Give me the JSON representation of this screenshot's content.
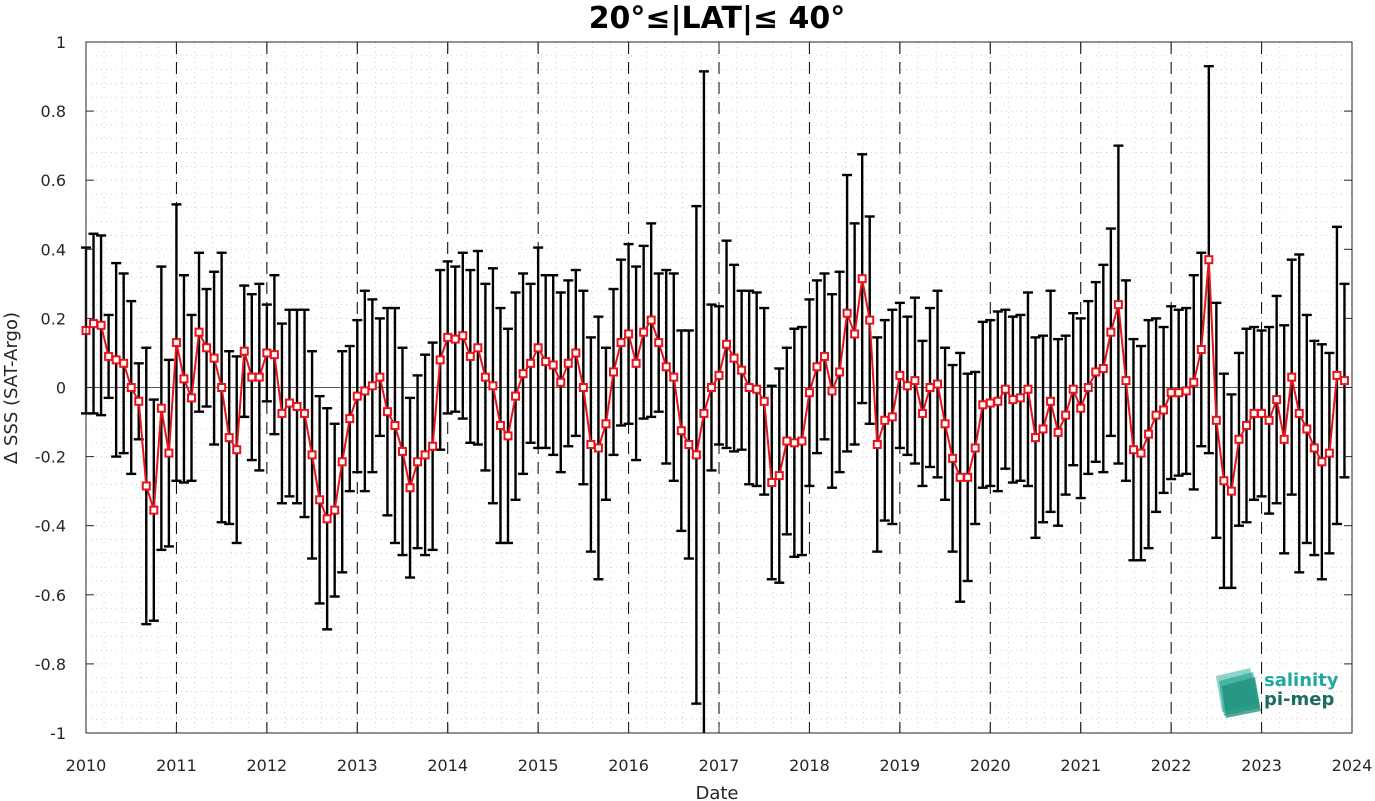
{
  "chart_data": {
    "type": "line",
    "title": "20°≤|LAT|≤ 40°",
    "xlabel": "Date",
    "ylabel": "Δ SSS (SAT-Argo)",
    "xlim": [
      "2010-01",
      "2024-01"
    ],
    "ylim": [
      -1,
      1
    ],
    "xticks": [
      "2010",
      "2011",
      "2012",
      "2013",
      "2014",
      "2015",
      "2016",
      "2017",
      "2018",
      "2019",
      "2020",
      "2021",
      "2022",
      "2023",
      "2024"
    ],
    "yticks": [
      -1,
      -0.8,
      -0.6,
      -0.4,
      -0.2,
      0,
      0.2,
      0.4,
      0.6,
      0.8,
      1
    ],
    "ytick_labels": [
      "-1",
      "-0.8",
      "-0.6",
      "-0.4",
      "-0.2",
      "0",
      "0.2",
      "0.4",
      "0.6",
      "0.8",
      "1"
    ],
    "grid": "minor dotted",
    "year_lines": "dashed vertical at each year",
    "series": [
      {
        "color": "#e8141b",
        "marker": "square",
        "x": [
          "2010-01",
          "2010-02",
          "2010-03",
          "2010-04",
          "2010-05",
          "2010-06",
          "2010-07",
          "2010-08",
          "2010-09",
          "2010-10",
          "2010-11",
          "2010-12",
          "2011-01",
          "2011-02",
          "2011-03",
          "2011-04",
          "2011-05",
          "2011-06",
          "2011-07",
          "2011-08",
          "2011-09",
          "2011-10",
          "2011-11",
          "2011-12",
          "2012-01",
          "2012-02",
          "2012-03",
          "2012-04",
          "2012-05",
          "2012-06",
          "2012-07",
          "2012-08",
          "2012-09",
          "2012-10",
          "2012-11",
          "2012-12",
          "2013-01",
          "2013-02",
          "2013-03",
          "2013-04",
          "2013-05",
          "2013-06",
          "2013-07",
          "2013-08",
          "2013-09",
          "2013-10",
          "2013-11",
          "2013-12",
          "2014-01",
          "2014-02",
          "2014-03",
          "2014-04",
          "2014-05",
          "2014-06",
          "2014-07",
          "2014-08",
          "2014-09",
          "2014-10",
          "2014-11",
          "2014-12",
          "2015-01",
          "2015-02",
          "2015-03",
          "2015-04",
          "2015-05",
          "2015-06",
          "2015-07",
          "2015-08",
          "2015-09",
          "2015-10",
          "2015-11",
          "2015-12",
          "2016-01",
          "2016-02",
          "2016-03",
          "2016-04",
          "2016-05",
          "2016-06",
          "2016-07",
          "2016-08",
          "2016-09",
          "2016-10",
          "2016-11",
          "2016-12",
          "2017-01",
          "2017-02",
          "2017-03",
          "2017-04",
          "2017-05",
          "2017-06",
          "2017-07",
          "2017-08",
          "2017-09",
          "2017-10",
          "2017-11",
          "2017-12",
          "2018-01",
          "2018-02",
          "2018-03",
          "2018-04",
          "2018-05",
          "2018-06",
          "2018-07",
          "2018-08",
          "2018-09",
          "2018-10",
          "2018-11",
          "2018-12",
          "2019-01",
          "2019-02",
          "2019-03",
          "2019-04",
          "2019-05",
          "2019-06",
          "2019-07",
          "2019-08",
          "2019-09",
          "2019-10",
          "2019-11",
          "2019-12",
          "2020-01",
          "2020-02",
          "2020-03",
          "2020-04",
          "2020-05",
          "2020-06",
          "2020-07",
          "2020-08",
          "2020-09",
          "2020-10",
          "2020-11",
          "2020-12",
          "2021-01",
          "2021-02",
          "2021-03",
          "2021-04",
          "2021-05",
          "2021-06",
          "2021-07",
          "2021-08",
          "2021-09",
          "2021-10",
          "2021-11",
          "2021-12",
          "2022-01",
          "2022-02",
          "2022-03",
          "2022-04",
          "2022-05",
          "2022-06",
          "2022-07",
          "2022-08",
          "2022-09",
          "2022-10",
          "2022-11",
          "2022-12",
          "2023-01",
          "2023-02",
          "2023-03",
          "2023-04",
          "2023-05",
          "2023-06",
          "2023-07",
          "2023-08",
          "2023-09",
          "2023-10",
          "2023-11",
          "2023-12"
        ],
        "y": [
          0.165,
          0.185,
          0.18,
          0.09,
          0.08,
          0.07,
          0.0,
          -0.04,
          -0.285,
          -0.355,
          -0.06,
          -0.19,
          0.13,
          0.025,
          -0.03,
          0.16,
          0.115,
          0.085,
          0.0,
          -0.145,
          -0.18,
          0.105,
          0.03,
          0.03,
          0.1,
          0.095,
          -0.075,
          -0.045,
          -0.055,
          -0.075,
          -0.195,
          -0.325,
          -0.38,
          -0.355,
          -0.215,
          -0.09,
          -0.025,
          -0.01,
          0.005,
          0.03,
          -0.07,
          -0.11,
          -0.185,
          -0.29,
          -0.215,
          -0.195,
          -0.17,
          0.08,
          0.145,
          0.14,
          0.15,
          0.09,
          0.115,
          0.03,
          0.005,
          -0.11,
          -0.14,
          -0.025,
          0.04,
          0.07,
          0.115,
          0.075,
          0.065,
          0.015,
          0.07,
          0.1,
          0.0,
          -0.165,
          -0.175,
          -0.105,
          0.045,
          0.13,
          0.155,
          0.07,
          0.16,
          0.195,
          0.13,
          0.06,
          0.03,
          -0.125,
          -0.165,
          -0.195,
          -0.075,
          0.0,
          0.035,
          0.125,
          0.085,
          0.05,
          0.0,
          -0.005,
          -0.04,
          -0.275,
          -0.255,
          -0.155,
          -0.16,
          -0.155,
          -0.015,
          0.06,
          0.09,
          -0.01,
          0.045,
          0.215,
          0.155,
          0.315,
          0.195,
          -0.165,
          -0.095,
          -0.085,
          0.035,
          0.005,
          0.02,
          -0.075,
          0.0,
          0.01,
          -0.105,
          -0.205,
          -0.26,
          -0.26,
          -0.175,
          -0.05,
          -0.045,
          -0.04,
          -0.005,
          -0.035,
          -0.03,
          -0.005,
          -0.145,
          -0.12,
          -0.04,
          -0.13,
          -0.08,
          -0.005,
          -0.06,
          0.0,
          0.045,
          0.055,
          0.16,
          0.24,
          0.02,
          -0.18,
          -0.19,
          -0.135,
          -0.08,
          -0.065,
          -0.015,
          -0.015,
          -0.01,
          0.015,
          0.11,
          0.37,
          -0.095,
          -0.27,
          -0.3,
          -0.15,
          -0.11,
          -0.075,
          -0.075,
          -0.095,
          -0.035,
          -0.15,
          0.03,
          -0.075,
          -0.12,
          -0.175,
          -0.215,
          -0.19,
          0.035,
          0.02
        ],
        "err": [
          0.24,
          0.26,
          0.26,
          0.12,
          0.28,
          0.26,
          0.25,
          0.11,
          0.4,
          0.32,
          0.41,
          0.27,
          0.4,
          0.3,
          0.24,
          0.23,
          0.17,
          0.25,
          0.39,
          0.25,
          0.27,
          0.19,
          0.24,
          0.27,
          0.14,
          0.23,
          0.26,
          0.27,
          0.28,
          0.3,
          0.3,
          0.3,
          0.32,
          0.25,
          0.32,
          0.21,
          0.22,
          0.29,
          0.25,
          0.17,
          0.3,
          0.34,
          0.3,
          0.26,
          0.25,
          0.29,
          0.3,
          0.26,
          0.22,
          0.21,
          0.24,
          0.25,
          0.28,
          0.27,
          0.34,
          0.34,
          0.31,
          0.3,
          0.29,
          0.23,
          0.29,
          0.25,
          0.26,
          0.26,
          0.24,
          0.24,
          0.28,
          0.31,
          0.38,
          0.22,
          0.24,
          0.24,
          0.26,
          0.28,
          0.25,
          0.28,
          0.2,
          0.28,
          0.3,
          0.29,
          0.33,
          0.72,
          0.99,
          0.24,
          0.2,
          0.3,
          0.27,
          0.23,
          0.28,
          0.28,
          0.27,
          0.28,
          0.31,
          0.27,
          0.33,
          0.33,
          0.27,
          0.25,
          0.24,
          0.28,
          0.29,
          0.4,
          0.32,
          0.36,
          0.3,
          0.31,
          0.29,
          0.31,
          0.21,
          0.2,
          0.24,
          0.21,
          0.23,
          0.27,
          0.22,
          0.27,
          0.36,
          0.3,
          0.22,
          0.24,
          0.24,
          0.26,
          0.23,
          0.24,
          0.24,
          0.28,
          0.29,
          0.27,
          0.32,
          0.27,
          0.23,
          0.22,
          0.26,
          0.25,
          0.26,
          0.3,
          0.3,
          0.46,
          0.29,
          0.32,
          0.31,
          0.33,
          0.28,
          0.24,
          0.25,
          0.24,
          0.24,
          0.31,
          0.28,
          0.56,
          0.34,
          0.31,
          0.28,
          0.25,
          0.28,
          0.25,
          0.24,
          0.27,
          0.3,
          0.33,
          0.34,
          0.46,
          0.33,
          0.31,
          0.34,
          0.29,
          0.43,
          0.28
        ]
      }
    ]
  },
  "logo": {
    "line1": "salinity",
    "line2": "pi-mep",
    "color1": "#1fa9a0",
    "color2": "#1e6b5c"
  }
}
